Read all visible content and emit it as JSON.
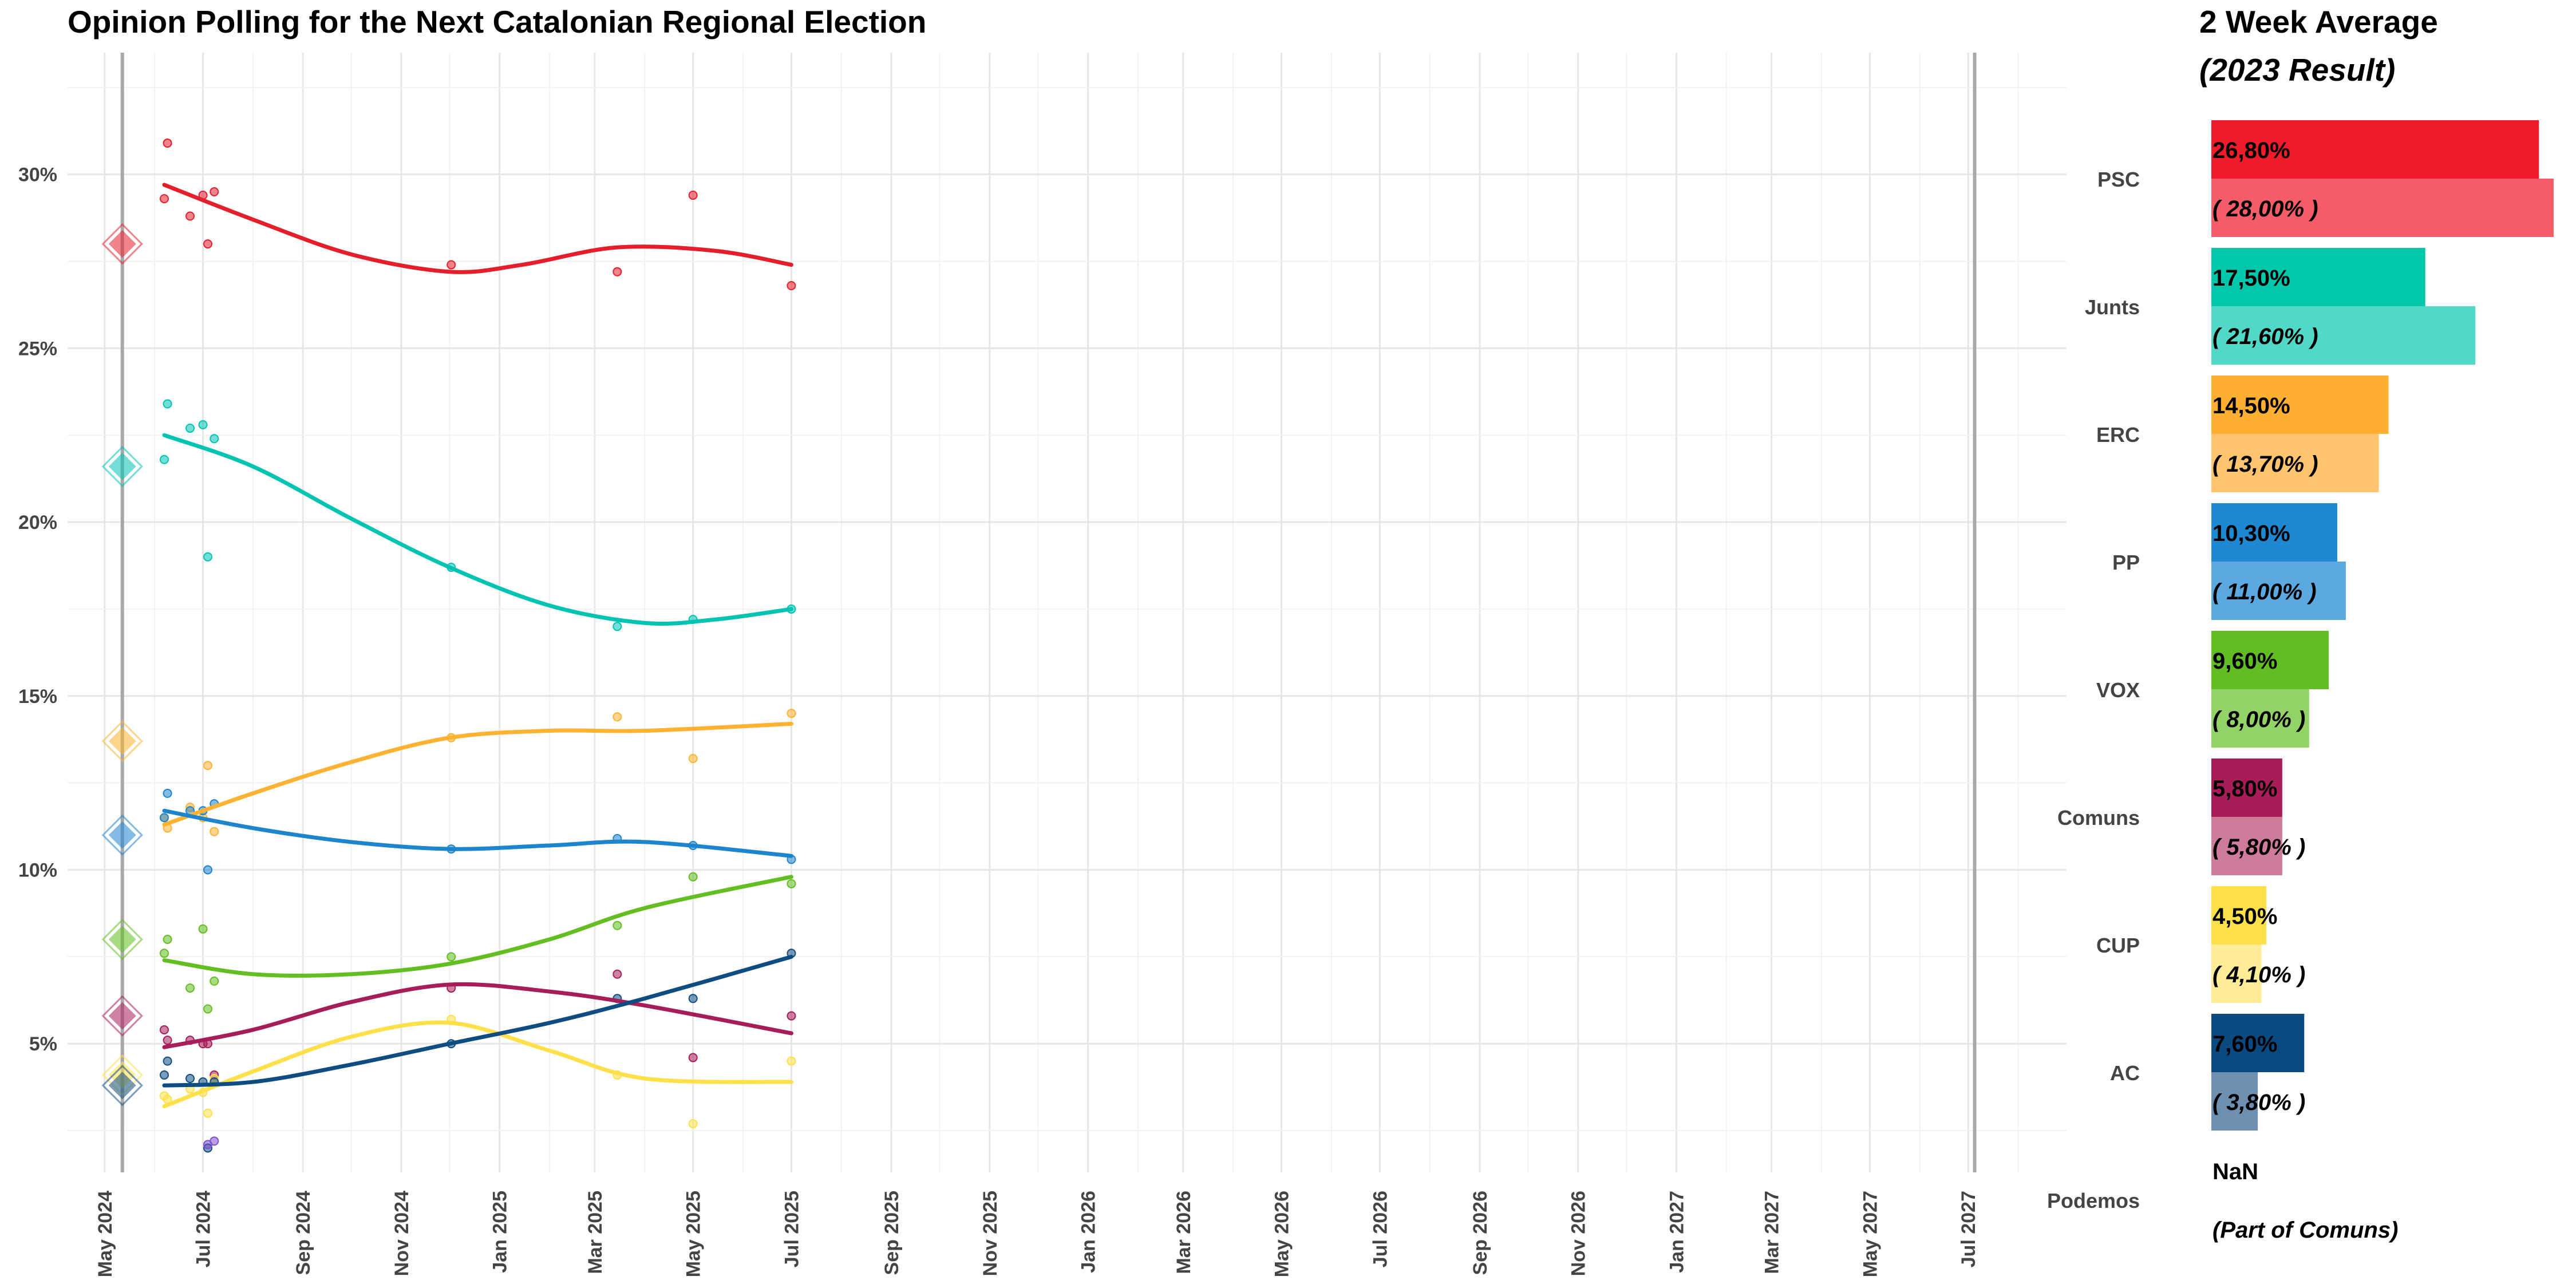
{
  "title": "Opinion Polling for the Next Catalonian Regional Election",
  "side_panel": {
    "title": "2 Week Average",
    "subtitle": "(2023 Result)"
  },
  "chart_data": [
    {
      "type": "scatter",
      "title": "Opinion Polling for the Next Catalonian Regional Election",
      "xlabel": "",
      "ylabel": "",
      "y_axis": {
        "ticks": [
          5,
          10,
          15,
          20,
          25,
          30
        ],
        "tick_labels": [
          "5%",
          "10%",
          "15%",
          "20%",
          "25%",
          "30%"
        ],
        "ylim": [
          1.3,
          33.5
        ]
      },
      "x_axis": {
        "range": [
          "2024-04-08",
          "2027-08-31"
        ],
        "ticks": [
          "2024-05-01",
          "2024-07-01",
          "2024-09-01",
          "2024-11-01",
          "2025-01-01",
          "2025-03-01",
          "2025-05-01",
          "2025-07-01",
          "2025-09-01",
          "2025-11-01",
          "2026-01-01",
          "2026-03-01",
          "2026-05-01",
          "2026-07-01",
          "2026-09-01",
          "2026-11-01",
          "2027-01-01",
          "2027-03-01",
          "2027-05-01",
          "2027-07-01"
        ],
        "tick_labels": [
          "May 2024",
          "Jul 2024",
          "Sep 2024",
          "Nov 2024",
          "Jan 2025",
          "Mar 2025",
          "May 2025",
          "Jul 2025",
          "Sep 2025",
          "Nov 2025",
          "Jan 2026",
          "Mar 2026",
          "May 2026",
          "Jul 2026",
          "Sep 2026",
          "Nov 2026",
          "Jan 2027",
          "Mar 2027",
          "May 2027",
          "Jul 2027"
        ],
        "label_rotation": "vertical"
      },
      "grid": true,
      "reference_lines": [
        "2024-05-12",
        "2027-07-05"
      ],
      "election_markers": {
        "date": "2024-05-12",
        "shape": "diamond"
      },
      "series": [
        {
          "name": "PSC",
          "color": "#E41E2B",
          "election_result": 28.0,
          "points": [
            [
              "2024-06-07",
              29.3
            ],
            [
              "2024-06-09",
              30.9
            ],
            [
              "2024-06-23",
              28.8
            ],
            [
              "2024-07-01",
              29.4
            ],
            [
              "2024-07-04",
              28.0
            ],
            [
              "2024-07-08",
              29.5
            ],
            [
              "2024-12-02",
              27.4
            ],
            [
              "2025-03-15",
              27.2
            ],
            [
              "2025-05-01",
              29.4
            ],
            [
              "2025-07-01",
              26.8
            ]
          ],
          "trend": [
            [
              "2024-06-07",
              29.7
            ],
            [
              "2024-08-01",
              28.7
            ],
            [
              "2024-10-01",
              27.7
            ],
            [
              "2024-12-01",
              27.2
            ],
            [
              "2025-01-15",
              27.4
            ],
            [
              "2025-03-15",
              27.9
            ],
            [
              "2025-05-15",
              27.8
            ],
            [
              "2025-07-01",
              27.4
            ]
          ]
        },
        {
          "name": "Junts",
          "color": "#00C3B2",
          "election_result": 21.6,
          "points": [
            [
              "2024-06-07",
              21.8
            ],
            [
              "2024-06-09",
              23.4
            ],
            [
              "2024-06-23",
              22.7
            ],
            [
              "2024-07-01",
              22.8
            ],
            [
              "2024-07-04",
              19.0
            ],
            [
              "2024-07-08",
              22.4
            ],
            [
              "2024-12-02",
              18.7
            ],
            [
              "2025-03-15",
              17.0
            ],
            [
              "2025-05-01",
              17.2
            ],
            [
              "2025-07-01",
              17.5
            ]
          ],
          "trend": [
            [
              "2024-06-07",
              22.5
            ],
            [
              "2024-08-01",
              21.6
            ],
            [
              "2024-10-01",
              20.1
            ],
            [
              "2024-12-01",
              18.7
            ],
            [
              "2025-02-01",
              17.6
            ],
            [
              "2025-04-01",
              17.1
            ],
            [
              "2025-05-15",
              17.2
            ],
            [
              "2025-07-01",
              17.5
            ]
          ]
        },
        {
          "name": "ERC",
          "color": "#FFB232",
          "election_result": 13.7,
          "points": [
            [
              "2024-06-07",
              11.5
            ],
            [
              "2024-06-09",
              11.2
            ],
            [
              "2024-06-23",
              11.8
            ],
            [
              "2024-07-01",
              11.5
            ],
            [
              "2024-07-04",
              13.0
            ],
            [
              "2024-07-08",
              11.1
            ],
            [
              "2024-12-02",
              13.8
            ],
            [
              "2025-03-15",
              14.4
            ],
            [
              "2025-05-01",
              13.2
            ],
            [
              "2025-07-01",
              14.5
            ]
          ],
          "trend": [
            [
              "2024-06-07",
              11.3
            ],
            [
              "2024-08-01",
              12.2
            ],
            [
              "2024-10-01",
              13.1
            ],
            [
              "2024-12-01",
              13.8
            ],
            [
              "2025-02-01",
              14.0
            ],
            [
              "2025-04-01",
              14.0
            ],
            [
              "2025-07-01",
              14.2
            ]
          ]
        },
        {
          "name": "PP",
          "color": "#1D84CE",
          "election_result": 11.0,
          "points": [
            [
              "2024-06-07",
              11.5
            ],
            [
              "2024-06-09",
              12.2
            ],
            [
              "2024-06-23",
              11.7
            ],
            [
              "2024-07-01",
              11.7
            ],
            [
              "2024-07-04",
              10.0
            ],
            [
              "2024-07-08",
              11.9
            ],
            [
              "2024-12-02",
              10.6
            ],
            [
              "2025-03-15",
              10.9
            ],
            [
              "2025-05-01",
              10.7
            ],
            [
              "2025-07-01",
              10.3
            ]
          ],
          "trend": [
            [
              "2024-06-07",
              11.7
            ],
            [
              "2024-08-01",
              11.2
            ],
            [
              "2024-10-01",
              10.8
            ],
            [
              "2024-12-01",
              10.6
            ],
            [
              "2025-02-01",
              10.7
            ],
            [
              "2025-04-01",
              10.8
            ],
            [
              "2025-07-01",
              10.4
            ]
          ]
        },
        {
          "name": "VOX",
          "color": "#63BE21",
          "election_result": 8.0,
          "points": [
            [
              "2024-06-07",
              7.6
            ],
            [
              "2024-06-09",
              8.0
            ],
            [
              "2024-06-23",
              6.6
            ],
            [
              "2024-07-01",
              8.3
            ],
            [
              "2024-07-04",
              6.0
            ],
            [
              "2024-07-08",
              6.8
            ],
            [
              "2024-12-02",
              7.5
            ],
            [
              "2025-03-15",
              8.4
            ],
            [
              "2025-05-01",
              9.8
            ],
            [
              "2025-07-01",
              9.6
            ]
          ],
          "trend": [
            [
              "2024-06-07",
              7.4
            ],
            [
              "2024-08-01",
              7.0
            ],
            [
              "2024-10-01",
              7.0
            ],
            [
              "2024-12-01",
              7.3
            ],
            [
              "2025-02-01",
              8.0
            ],
            [
              "2025-04-01",
              8.9
            ],
            [
              "2025-07-01",
              9.8
            ]
          ]
        },
        {
          "name": "Comuns",
          "color": "#A61D5A",
          "election_result": 5.8,
          "points": [
            [
              "2024-06-07",
              5.4
            ],
            [
              "2024-06-09",
              5.1
            ],
            [
              "2024-06-23",
              5.1
            ],
            [
              "2024-07-01",
              5.0
            ],
            [
              "2024-07-04",
              5.0
            ],
            [
              "2024-07-08",
              4.1
            ],
            [
              "2024-12-02",
              6.6
            ],
            [
              "2025-03-15",
              7.0
            ],
            [
              "2025-05-01",
              4.6
            ],
            [
              "2025-07-01",
              5.8
            ]
          ],
          "trend": [
            [
              "2024-06-07",
              4.9
            ],
            [
              "2024-08-01",
              5.4
            ],
            [
              "2024-10-01",
              6.2
            ],
            [
              "2024-12-01",
              6.7
            ],
            [
              "2025-02-01",
              6.5
            ],
            [
              "2025-04-01",
              6.1
            ],
            [
              "2025-07-01",
              5.3
            ]
          ]
        },
        {
          "name": "CUP",
          "color": "#FFE049",
          "election_result": 4.1,
          "points": [
            [
              "2024-06-07",
              3.5
            ],
            [
              "2024-06-09",
              3.4
            ],
            [
              "2024-06-23",
              3.7
            ],
            [
              "2024-07-01",
              3.6
            ],
            [
              "2024-07-04",
              3.0
            ],
            [
              "2024-07-08",
              4.0
            ],
            [
              "2024-12-02",
              5.7
            ],
            [
              "2025-03-15",
              4.1
            ],
            [
              "2025-05-01",
              2.7
            ],
            [
              "2025-07-01",
              4.5
            ]
          ],
          "trend": [
            [
              "2024-06-07",
              3.2
            ],
            [
              "2024-08-01",
              4.2
            ],
            [
              "2024-10-01",
              5.2
            ],
            [
              "2024-12-01",
              5.6
            ],
            [
              "2025-02-01",
              4.8
            ],
            [
              "2025-04-01",
              4.0
            ],
            [
              "2025-07-01",
              3.9
            ]
          ]
        },
        {
          "name": "AC",
          "color": "#0F4C81",
          "election_result": 3.8,
          "points": [
            [
              "2024-06-07",
              4.1
            ],
            [
              "2024-06-09",
              4.5
            ],
            [
              "2024-06-23",
              4.0
            ],
            [
              "2024-07-01",
              3.9
            ],
            [
              "2024-07-04",
              2.0
            ],
            [
              "2024-07-08",
              3.9
            ],
            [
              "2024-12-02",
              5.0
            ],
            [
              "2025-03-15",
              6.3
            ],
            [
              "2025-05-01",
              6.3
            ],
            [
              "2025-07-01",
              7.6
            ]
          ],
          "trend": [
            [
              "2024-06-07",
              3.8
            ],
            [
              "2024-08-01",
              3.9
            ],
            [
              "2024-10-01",
              4.4
            ],
            [
              "2024-12-01",
              5.0
            ],
            [
              "2025-02-01",
              5.6
            ],
            [
              "2025-04-01",
              6.3
            ],
            [
              "2025-07-01",
              7.5
            ]
          ]
        },
        {
          "name": "Podemos",
          "color": "#7B4FD0",
          "points": [
            [
              "2024-07-04",
              2.1
            ],
            [
              "2024-07-08",
              2.2
            ]
          ],
          "trend": []
        }
      ]
    },
    {
      "type": "bar",
      "orientation": "horizontal",
      "title": "2 Week Average",
      "subtitle": "(2023 Result)",
      "xlim": [
        0,
        28.8
      ],
      "categories": [
        "PSC",
        "Junts",
        "ERC",
        "PP",
        "VOX",
        "Comuns",
        "CUP",
        "AC",
        "Podemos"
      ],
      "series": [
        {
          "name": "2 Week Average",
          "values": [
            26.8,
            17.5,
            14.5,
            10.3,
            9.6,
            5.8,
            4.5,
            7.6,
            null
          ],
          "labels": [
            "26,80%",
            "17,50%",
            "14,50%",
            "10,30%",
            "9,60%",
            "5,80%",
            "4,50%",
            "7,60%",
            "NaN"
          ],
          "colors": [
            "#EF1C2C",
            "#00C6AC",
            "#FFB032",
            "#1E88D0",
            "#62BD24",
            "#A81D57",
            "#FFE04A",
            "#0B4A81",
            "#ffffff"
          ]
        },
        {
          "name": "(2023 Result)",
          "values": [
            28.0,
            21.6,
            13.7,
            11.0,
            8.0,
            5.8,
            4.1,
            3.8,
            null
          ],
          "labels": [
            "( 28,00% )",
            "( 21,60% )",
            "( 13,70% )",
            "( 11,00% )",
            "( 8,00% )",
            "( 5,80% )",
            "( 4,10% )",
            "( 3,80% )",
            "(Part of Comuns)"
          ],
          "colors": [
            "#F45D67",
            "#4FD9C6",
            "#FFC56E",
            "#5CA8E0",
            "#92D267",
            "#CE7B9C",
            "#FFEC97",
            "#6D90B1",
            "#ffffff"
          ]
        }
      ]
    }
  ]
}
